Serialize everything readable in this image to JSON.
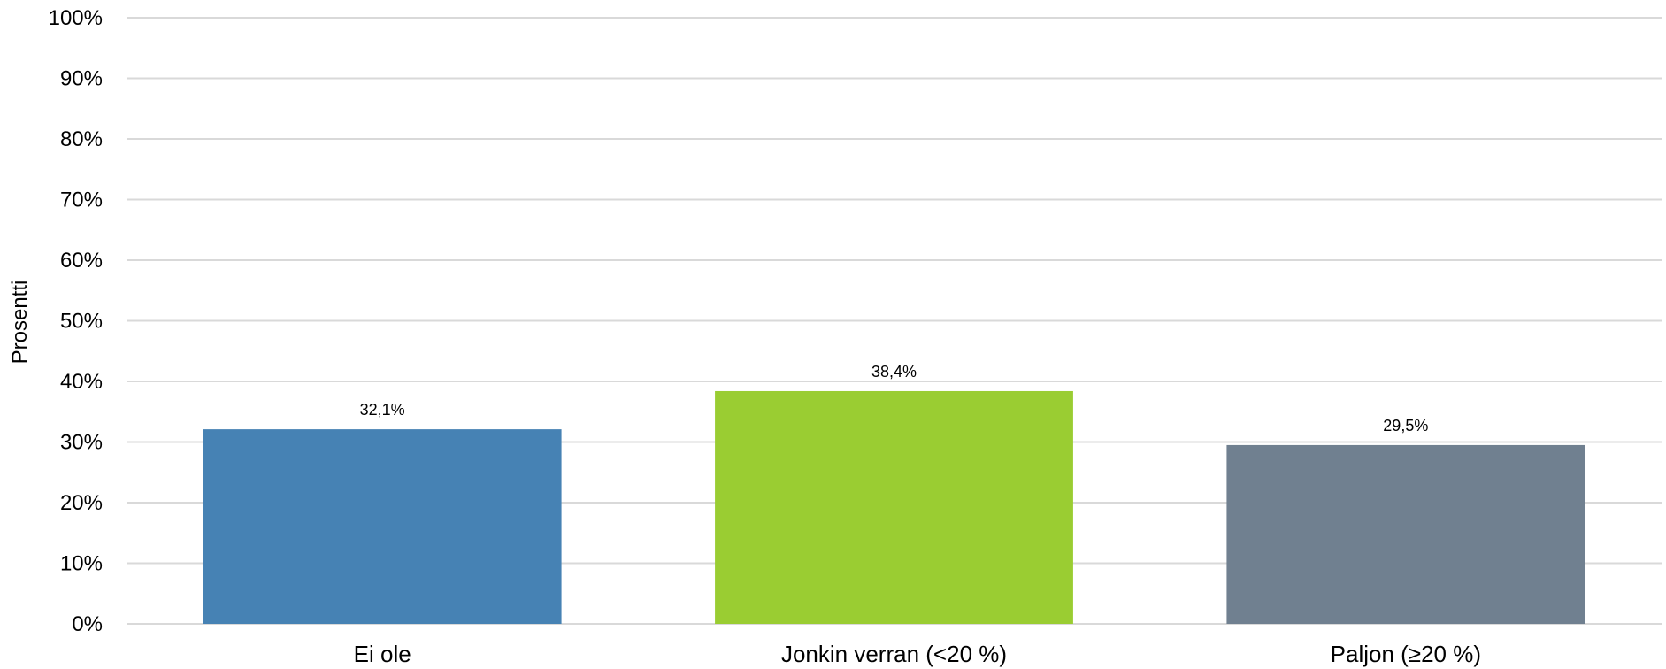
{
  "chart_data": {
    "type": "bar",
    "title": "",
    "xlabel": "",
    "ylabel": "Prosentti",
    "categories": [
      "Ei ole",
      "Jonkin verran (<20 %)",
      "Paljon (≥20 %)"
    ],
    "values": [
      32.1,
      38.4,
      29.5
    ],
    "value_labels": [
      "32,1%",
      "38,4%",
      "29,5%"
    ],
    "colors": [
      "#4682b4",
      "#9acd32",
      "#708090"
    ],
    "ylim": [
      0,
      100
    ],
    "yticks": [
      0,
      10,
      20,
      30,
      40,
      50,
      60,
      70,
      80,
      90,
      100
    ],
    "ytick_labels": [
      "0%",
      "10%",
      "20%",
      "30%",
      "40%",
      "50%",
      "60%",
      "70%",
      "80%",
      "90%",
      "100%"
    ],
    "grid": true,
    "grid_color": "#d9d9d9",
    "legend": "none"
  }
}
